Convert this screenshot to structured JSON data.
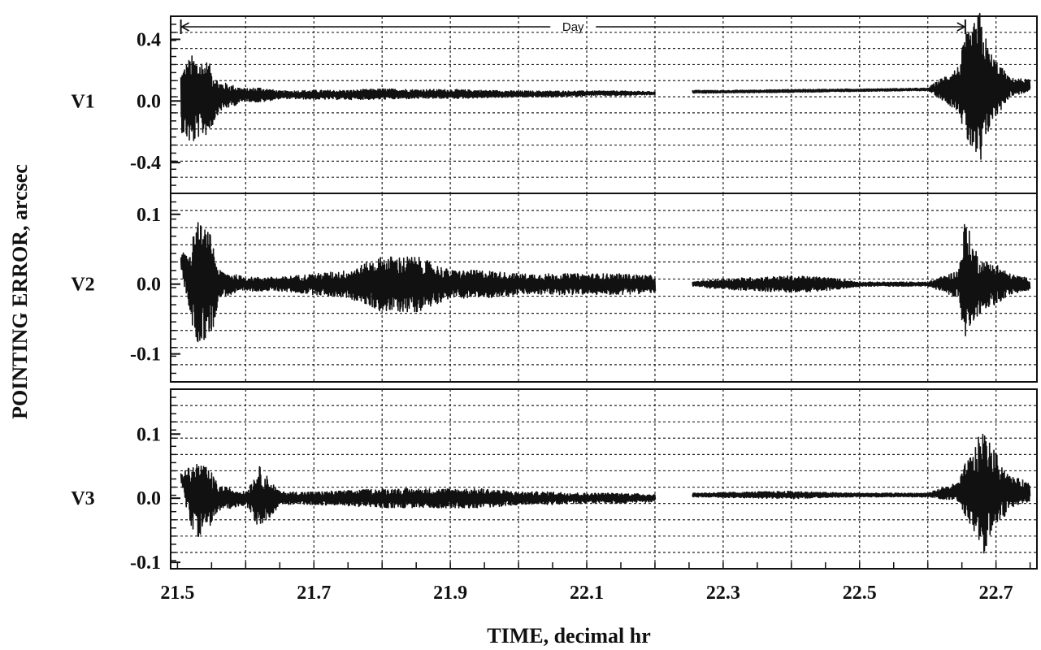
{
  "chart_data": {
    "type": "line",
    "xlabel": "TIME, decimal hr",
    "ylabel": "POINTING ERROR, arcsec",
    "x_ticks": [
      "21.5",
      "21.7",
      "21.9",
      "22.1",
      "22.3",
      "22.5",
      "22.7"
    ],
    "x_tick_values": [
      21.5,
      21.7,
      21.9,
      22.1,
      22.3,
      22.5,
      22.7
    ],
    "xlim": [
      21.49,
      22.76
    ],
    "grid": true,
    "annotation": {
      "text": "Day",
      "x_start": 21.505,
      "x_end": 22.655
    },
    "gap": [
      22.2,
      22.255
    ],
    "panels": [
      {
        "name": "V1",
        "ylim": [
          -0.6,
          0.55
        ],
        "y_ticks": [
          "0.4",
          "0.0",
          "-0.4"
        ],
        "y_tick_values": [
          0.4,
          0.0,
          -0.4
        ],
        "envelope": {
          "x": [
            21.505,
            21.52,
            21.53,
            21.545,
            21.56,
            21.6,
            21.62,
            21.65,
            21.7,
            21.75,
            21.8,
            21.85,
            21.9,
            21.95,
            22.0,
            22.05,
            22.1,
            22.15,
            22.2,
            22.255,
            22.3,
            22.4,
            22.5,
            22.6,
            22.645,
            22.655,
            22.665,
            22.675,
            22.69,
            22.72,
            22.75
          ],
          "y_center": [
            0.0,
            0.0,
            0.02,
            0.02,
            0.03,
            0.04,
            0.04,
            0.04,
            0.04,
            0.04,
            0.045,
            0.045,
            0.045,
            0.045,
            0.045,
            0.045,
            0.05,
            0.05,
            0.05,
            0.06,
            0.06,
            0.065,
            0.07,
            0.075,
            0.08,
            0.08,
            0.07,
            0.05,
            0.08,
            0.09,
            0.1
          ],
          "amplitude": [
            0.2,
            0.3,
            0.26,
            0.24,
            0.1,
            0.04,
            0.05,
            0.025,
            0.03,
            0.03,
            0.035,
            0.03,
            0.03,
            0.025,
            0.02,
            0.02,
            0.015,
            0.015,
            0.01,
            0.01,
            0.008,
            0.01,
            0.008,
            0.008,
            0.15,
            0.35,
            0.4,
            0.55,
            0.25,
            0.06,
            0.04
          ]
        }
      },
      {
        "name": "V2",
        "ylim": [
          -0.14,
          0.13
        ],
        "y_ticks": [
          "0.1",
          "0.0",
          "-0.1"
        ],
        "y_tick_values": [
          0.1,
          0.0,
          -0.1
        ],
        "envelope": {
          "x": [
            21.505,
            21.52,
            21.53,
            21.55,
            21.56,
            21.6,
            21.65,
            21.7,
            21.75,
            21.8,
            21.85,
            21.9,
            21.95,
            22.0,
            22.05,
            22.1,
            22.15,
            22.2,
            22.255,
            22.3,
            22.4,
            22.45,
            22.5,
            22.6,
            22.645,
            22.655,
            22.665,
            22.68,
            22.7,
            22.72,
            22.75
          ],
          "y_center": [
            0.03,
            0.0,
            0.0,
            0.0,
            0.0,
            0.0,
            0.0,
            0.0,
            0.0,
            0.0,
            0.0,
            0.0,
            0.0,
            0.0,
            0.0,
            0.0,
            0.0,
            0.0,
            0.0,
            0.0,
            0.0,
            0.0,
            0.0,
            0.0,
            0.0,
            0.0,
            0.0,
            0.0,
            0.0,
            0.0,
            0.0
          ],
          "amplitude": [
            0.01,
            0.06,
            0.09,
            0.07,
            0.02,
            0.01,
            0.01,
            0.015,
            0.02,
            0.04,
            0.04,
            0.02,
            0.02,
            0.015,
            0.015,
            0.015,
            0.015,
            0.012,
            0.003,
            0.008,
            0.012,
            0.01,
            0.003,
            0.003,
            0.02,
            0.1,
            0.06,
            0.035,
            0.03,
            0.015,
            0.008
          ]
        }
      },
      {
        "name": "V3",
        "ylim": [
          -0.11,
          0.17
        ],
        "y_ticks": [
          "0.1",
          "0.0",
          "-0.1"
        ],
        "y_tick_values": [
          0.1,
          0.0,
          -0.1
        ],
        "envelope": {
          "x": [
            21.505,
            21.52,
            21.53,
            21.55,
            21.56,
            21.6,
            21.62,
            21.65,
            21.7,
            21.75,
            21.8,
            21.85,
            21.9,
            21.95,
            22.0,
            22.05,
            22.1,
            22.15,
            22.2,
            22.255,
            22.3,
            22.4,
            22.45,
            22.5,
            22.6,
            22.645,
            22.655,
            22.665,
            22.68,
            22.7,
            22.72,
            22.75
          ],
          "y_center": [
            0.03,
            0.0,
            0.0,
            0.0,
            0.0,
            0.0,
            0.0,
            0.0,
            0.0,
            0.0,
            0.0,
            0.0,
            0.0,
            0.0,
            0.0,
            0.0,
            0.0,
            0.0,
            0.0,
            0.005,
            0.005,
            0.005,
            0.005,
            0.005,
            0.005,
            0.01,
            0.01,
            0.01,
            0.01,
            0.01,
            0.01,
            0.01
          ],
          "amplitude": [
            0.01,
            0.05,
            0.06,
            0.04,
            0.02,
            0.01,
            0.05,
            0.01,
            0.01,
            0.012,
            0.015,
            0.015,
            0.015,
            0.015,
            0.01,
            0.01,
            0.008,
            0.008,
            0.006,
            0.003,
            0.004,
            0.006,
            0.004,
            0.003,
            0.003,
            0.015,
            0.045,
            0.06,
            0.1,
            0.06,
            0.025,
            0.015
          ]
        }
      }
    ]
  }
}
